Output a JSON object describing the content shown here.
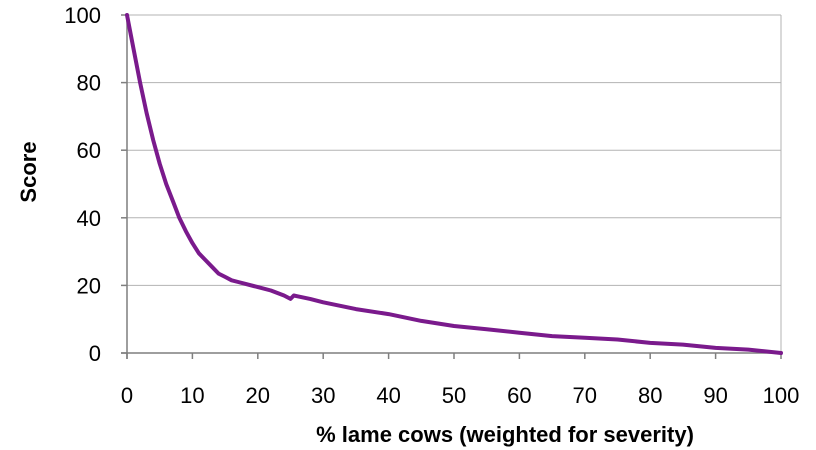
{
  "chart_data": {
    "type": "line",
    "title": "",
    "xlabel": "% lame cows (weighted for severity)",
    "ylabel": "Score",
    "xlim": [
      0,
      100
    ],
    "ylim": [
      0,
      100
    ],
    "x_ticks": [
      0,
      10,
      20,
      30,
      40,
      50,
      60,
      70,
      80,
      90,
      100
    ],
    "y_ticks": [
      0,
      20,
      40,
      60,
      80,
      100
    ],
    "grid": "horizontal",
    "legend": "none",
    "series": [
      {
        "color": "#7a1a8c",
        "x": [
          0,
          1,
          2,
          3,
          4,
          5,
          6,
          7,
          8,
          9,
          10,
          11,
          12,
          13,
          14,
          15,
          16,
          17,
          18,
          20,
          22,
          24,
          25,
          25.5,
          26,
          28,
          30,
          35,
          40,
          45,
          50,
          55,
          60,
          65,
          70,
          75,
          80,
          85,
          90,
          95,
          100
        ],
        "y": [
          100,
          90,
          80,
          71,
          63,
          56,
          50,
          45,
          40,
          36,
          32.5,
          29.5,
          27.5,
          25.5,
          23.5,
          22.5,
          21.5,
          21,
          20.5,
          19.5,
          18.5,
          17,
          16,
          17,
          16.8,
          16,
          15,
          13,
          11.5,
          9.5,
          8,
          7,
          6,
          5,
          4.5,
          4,
          3,
          2.5,
          1.5,
          1,
          0
        ]
      }
    ]
  }
}
